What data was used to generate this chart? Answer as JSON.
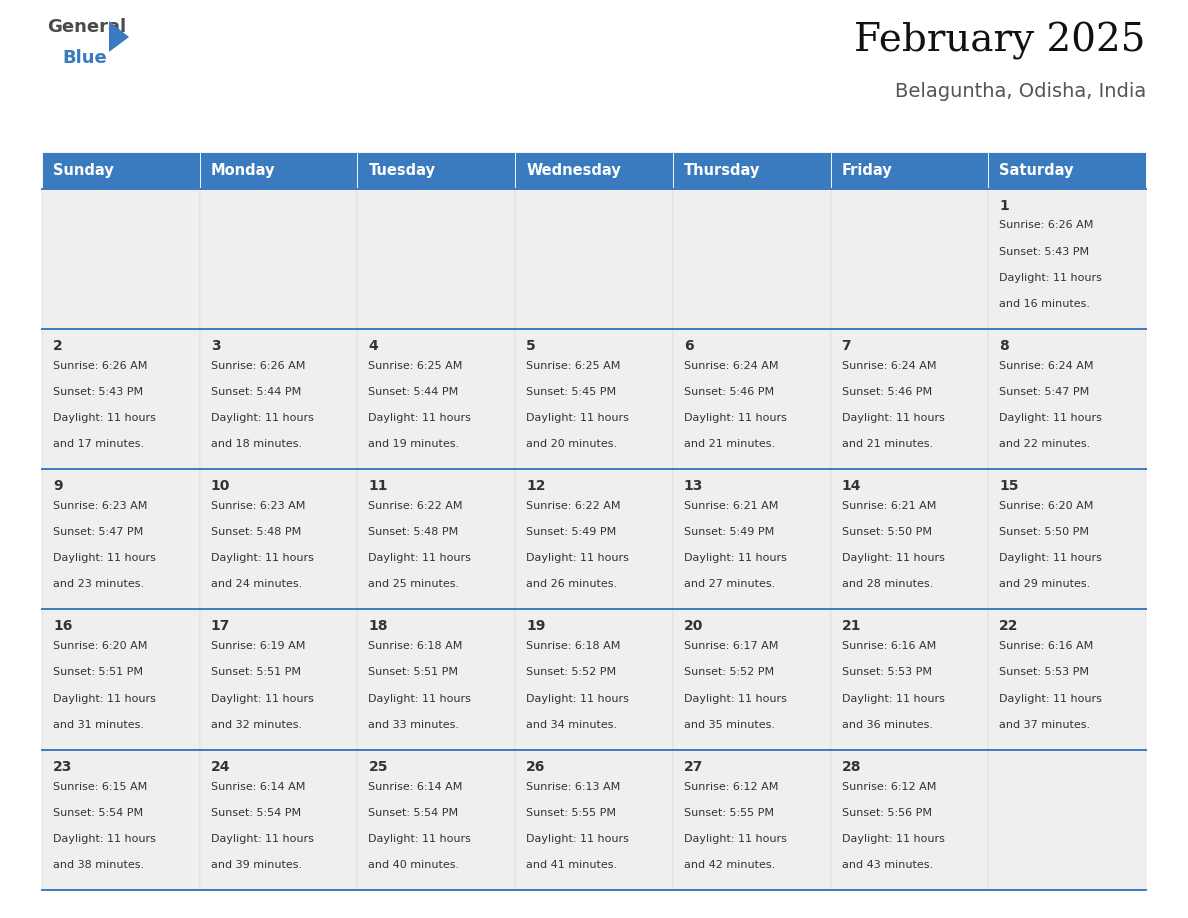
{
  "title": "February 2025",
  "subtitle": "Belaguntha, Odisha, India",
  "days_of_week": [
    "Sunday",
    "Monday",
    "Tuesday",
    "Wednesday",
    "Thursday",
    "Friday",
    "Saturday"
  ],
  "header_bg": "#3a7bbf",
  "header_text": "#ffffff",
  "cell_bg": "#efefef",
  "border_color": "#3a7bbf",
  "text_color": "#333333",
  "title_color": "#111111",
  "subtitle_color": "#555555",
  "weeks": [
    [
      null,
      null,
      null,
      null,
      null,
      null,
      {
        "day": 1,
        "sunrise": "6:26 AM",
        "sunset": "5:43 PM",
        "daylight_hours": 11,
        "daylight_minutes": 16
      }
    ],
    [
      {
        "day": 2,
        "sunrise": "6:26 AM",
        "sunset": "5:43 PM",
        "daylight_hours": 11,
        "daylight_minutes": 17
      },
      {
        "day": 3,
        "sunrise": "6:26 AM",
        "sunset": "5:44 PM",
        "daylight_hours": 11,
        "daylight_minutes": 18
      },
      {
        "day": 4,
        "sunrise": "6:25 AM",
        "sunset": "5:44 PM",
        "daylight_hours": 11,
        "daylight_minutes": 19
      },
      {
        "day": 5,
        "sunrise": "6:25 AM",
        "sunset": "5:45 PM",
        "daylight_hours": 11,
        "daylight_minutes": 20
      },
      {
        "day": 6,
        "sunrise": "6:24 AM",
        "sunset": "5:46 PM",
        "daylight_hours": 11,
        "daylight_minutes": 21
      },
      {
        "day": 7,
        "sunrise": "6:24 AM",
        "sunset": "5:46 PM",
        "daylight_hours": 11,
        "daylight_minutes": 21
      },
      {
        "day": 8,
        "sunrise": "6:24 AM",
        "sunset": "5:47 PM",
        "daylight_hours": 11,
        "daylight_minutes": 22
      }
    ],
    [
      {
        "day": 9,
        "sunrise": "6:23 AM",
        "sunset": "5:47 PM",
        "daylight_hours": 11,
        "daylight_minutes": 23
      },
      {
        "day": 10,
        "sunrise": "6:23 AM",
        "sunset": "5:48 PM",
        "daylight_hours": 11,
        "daylight_minutes": 24
      },
      {
        "day": 11,
        "sunrise": "6:22 AM",
        "sunset": "5:48 PM",
        "daylight_hours": 11,
        "daylight_minutes": 25
      },
      {
        "day": 12,
        "sunrise": "6:22 AM",
        "sunset": "5:49 PM",
        "daylight_hours": 11,
        "daylight_minutes": 26
      },
      {
        "day": 13,
        "sunrise": "6:21 AM",
        "sunset": "5:49 PM",
        "daylight_hours": 11,
        "daylight_minutes": 27
      },
      {
        "day": 14,
        "sunrise": "6:21 AM",
        "sunset": "5:50 PM",
        "daylight_hours": 11,
        "daylight_minutes": 28
      },
      {
        "day": 15,
        "sunrise": "6:20 AM",
        "sunset": "5:50 PM",
        "daylight_hours": 11,
        "daylight_minutes": 29
      }
    ],
    [
      {
        "day": 16,
        "sunrise": "6:20 AM",
        "sunset": "5:51 PM",
        "daylight_hours": 11,
        "daylight_minutes": 31
      },
      {
        "day": 17,
        "sunrise": "6:19 AM",
        "sunset": "5:51 PM",
        "daylight_hours": 11,
        "daylight_minutes": 32
      },
      {
        "day": 18,
        "sunrise": "6:18 AM",
        "sunset": "5:51 PM",
        "daylight_hours": 11,
        "daylight_minutes": 33
      },
      {
        "day": 19,
        "sunrise": "6:18 AM",
        "sunset": "5:52 PM",
        "daylight_hours": 11,
        "daylight_minutes": 34
      },
      {
        "day": 20,
        "sunrise": "6:17 AM",
        "sunset": "5:52 PM",
        "daylight_hours": 11,
        "daylight_minutes": 35
      },
      {
        "day": 21,
        "sunrise": "6:16 AM",
        "sunset": "5:53 PM",
        "daylight_hours": 11,
        "daylight_minutes": 36
      },
      {
        "day": 22,
        "sunrise": "6:16 AM",
        "sunset": "5:53 PM",
        "daylight_hours": 11,
        "daylight_minutes": 37
      }
    ],
    [
      {
        "day": 23,
        "sunrise": "6:15 AM",
        "sunset": "5:54 PM",
        "daylight_hours": 11,
        "daylight_minutes": 38
      },
      {
        "day": 24,
        "sunrise": "6:14 AM",
        "sunset": "5:54 PM",
        "daylight_hours": 11,
        "daylight_minutes": 39
      },
      {
        "day": 25,
        "sunrise": "6:14 AM",
        "sunset": "5:54 PM",
        "daylight_hours": 11,
        "daylight_minutes": 40
      },
      {
        "day": 26,
        "sunrise": "6:13 AM",
        "sunset": "5:55 PM",
        "daylight_hours": 11,
        "daylight_minutes": 41
      },
      {
        "day": 27,
        "sunrise": "6:12 AM",
        "sunset": "5:55 PM",
        "daylight_hours": 11,
        "daylight_minutes": 42
      },
      {
        "day": 28,
        "sunrise": "6:12 AM",
        "sunset": "5:56 PM",
        "daylight_hours": 11,
        "daylight_minutes": 43
      },
      null
    ]
  ]
}
